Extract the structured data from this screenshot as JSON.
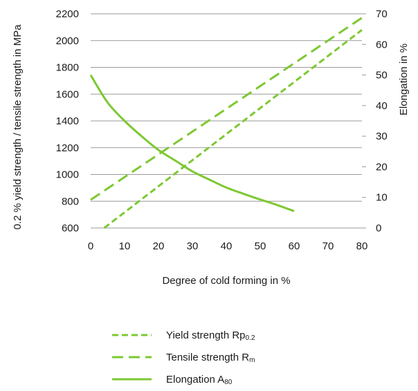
{
  "chart_data": {
    "type": "line",
    "xlabel": "Degree of cold forming in %",
    "ylabel": "0.2 % yield strength / tensile strength in MPa",
    "y2label": "Elongation in %",
    "xlim": [
      0,
      80
    ],
    "ylim": [
      600,
      2200
    ],
    "y2lim": [
      0,
      70
    ],
    "xticks": [
      "0",
      "10",
      "20",
      "30",
      "40",
      "50",
      "60",
      "70",
      "80"
    ],
    "yticks": [
      "600",
      "800",
      "1000",
      "1200",
      "1400",
      "1600",
      "1800",
      "2000",
      "2200"
    ],
    "y2ticks": [
      "0",
      "10",
      "20",
      "30",
      "40",
      "50",
      "60",
      "70"
    ],
    "grid": "horizontal",
    "legend_position": "bottom",
    "color": "#7dc832",
    "series": [
      {
        "name": "Yield strength Rp0.2",
        "name_main": "Yield strength Rp",
        "name_sub": "0.2",
        "axis": "left",
        "style": "dotted-dash",
        "x": [
          4,
          80
        ],
        "y": [
          600,
          2080
        ]
      },
      {
        "name": "Tensile strength Rm",
        "name_main": "Tensile strength R",
        "name_sub": "m",
        "axis": "left",
        "style": "dashed",
        "x": [
          0,
          80
        ],
        "y": [
          810,
          2170
        ]
      },
      {
        "name": "Elongation A80",
        "name_main": "Elongation A",
        "name_sub": "80",
        "axis": "right",
        "style": "solid",
        "x": [
          0,
          5,
          10,
          15,
          20,
          25,
          30,
          35,
          40,
          45,
          50,
          55,
          60
        ],
        "y": [
          50,
          41,
          35,
          30,
          25.5,
          22,
          18.5,
          15.8,
          13.2,
          11.2,
          9.3,
          7.5,
          5.5
        ]
      }
    ]
  }
}
